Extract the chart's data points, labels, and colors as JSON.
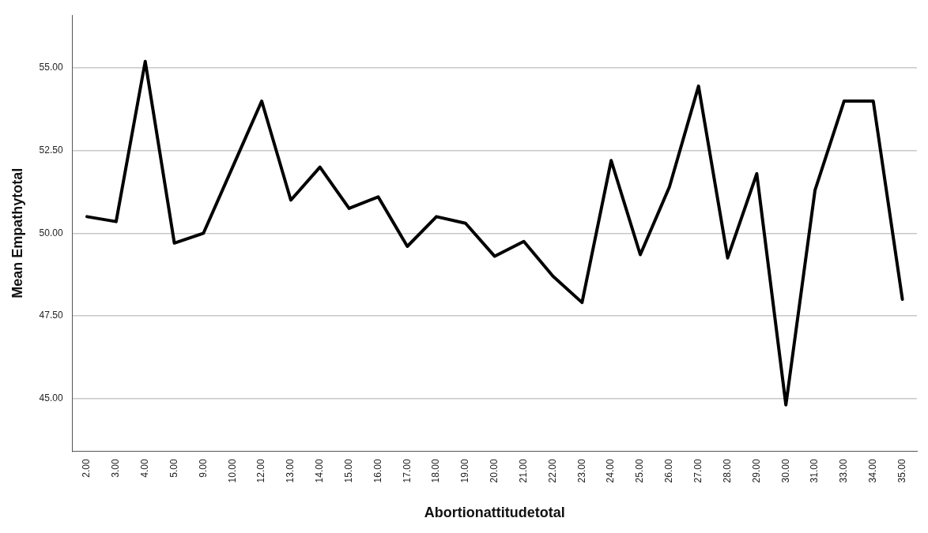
{
  "chart_data": {
    "type": "line",
    "xlabel": "Abortionattitudetotal",
    "ylabel": "Mean Empathytotal",
    "categories": [
      "2.00",
      "3.00",
      "4.00",
      "5.00",
      "9.00",
      "10.00",
      "12.00",
      "13.00",
      "14.00",
      "15.00",
      "16.00",
      "17.00",
      "18.00",
      "19.00",
      "20.00",
      "21.00",
      "22.00",
      "23.00",
      "24.00",
      "25.00",
      "26.00",
      "27.00",
      "28.00",
      "29.00",
      "30.00",
      "31.00",
      "33.00",
      "34.00",
      "35.00"
    ],
    "series": [
      {
        "color": "#000000",
        "values": [
          50.5,
          50.35,
          55.2,
          49.7,
          50.0,
          52.0,
          54.0,
          51.0,
          52.0,
          50.75,
          51.1,
          49.6,
          50.5,
          50.3,
          49.3,
          49.75,
          48.7,
          47.9,
          52.2,
          49.35,
          51.4,
          54.45,
          49.25,
          51.8,
          44.8,
          51.3,
          54.0,
          54.0,
          48.0
        ]
      }
    ],
    "ylim": [
      43.4,
      56.6
    ],
    "yticks": [
      {
        "value": 45,
        "label": "45.00"
      },
      {
        "value": 47.5,
        "label": "47.50"
      },
      {
        "value": 50,
        "label": "50.00"
      },
      {
        "value": 52.5,
        "label": "52.50"
      },
      {
        "value": 55,
        "label": "55.00"
      }
    ],
    "grid": "y",
    "legend": false,
    "marker": "none",
    "line_style": "solid"
  }
}
